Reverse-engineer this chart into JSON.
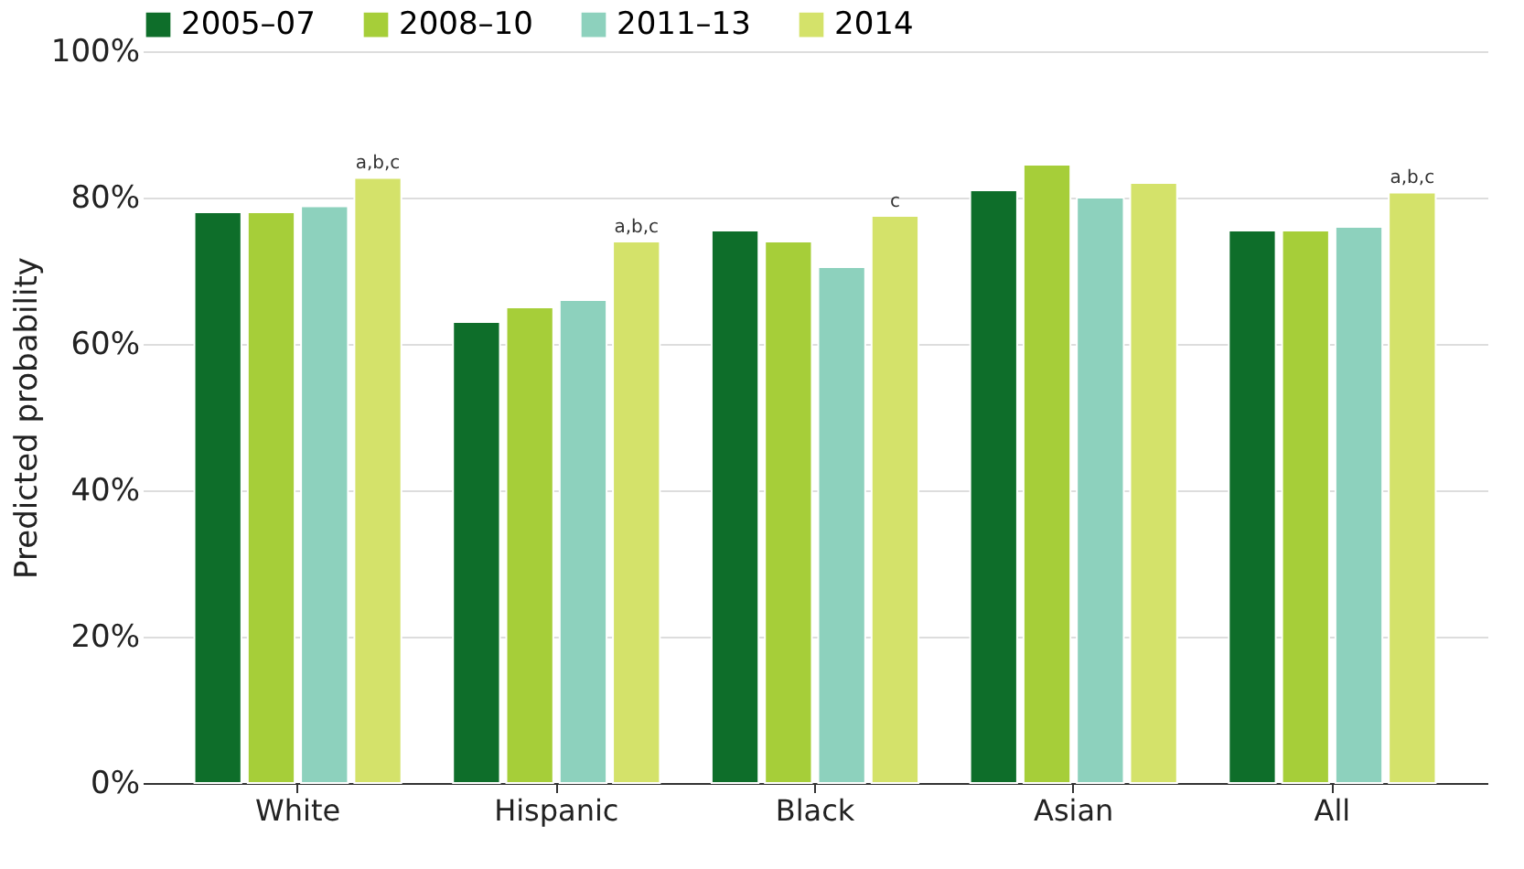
{
  "chart_data": {
    "type": "bar",
    "ylabel": "Predicted probability",
    "categories": [
      "White",
      "Hispanic",
      "Black",
      "Asian",
      "All"
    ],
    "series": [
      {
        "name": "2005–07",
        "color": "#0e6e2a",
        "values": [
          78,
          63,
          75.5,
          81,
          75.5
        ]
      },
      {
        "name": "2008–10",
        "color": "#a6ce39",
        "values": [
          78,
          65,
          74,
          84.5,
          75.5
        ]
      },
      {
        "name": "2011–13",
        "color": "#8dd1bd",
        "values": [
          78.8,
          66,
          70.5,
          80,
          76
        ]
      },
      {
        "name": "2014",
        "color": "#d4e26a",
        "values": [
          82.7,
          74,
          77.5,
          82,
          80.7
        ],
        "value_labels": [
          "a,b,c",
          "a,b,c",
          "c",
          null,
          "a,b,c"
        ]
      }
    ],
    "ylim": [
      0,
      100
    ],
    "yticks": [
      {
        "value": 0,
        "label": "0%"
      },
      {
        "value": 20,
        "label": "20%"
      },
      {
        "value": 40,
        "label": "40%"
      },
      {
        "value": 60,
        "label": "60%"
      },
      {
        "value": 80,
        "label": "80%"
      },
      {
        "value": 100,
        "label": "100%"
      }
    ],
    "grid": "y",
    "legend": "top left"
  }
}
